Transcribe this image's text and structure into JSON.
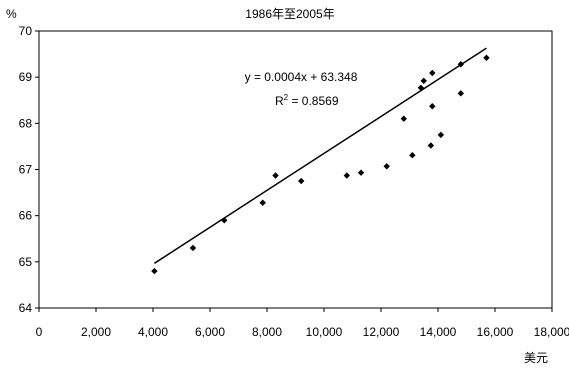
{
  "chart_data": {
    "type": "scatter",
    "title": "1986年至2005年",
    "ylabel": "%",
    "xlabel": "美元",
    "xlim": [
      0,
      18000
    ],
    "ylim": [
      64,
      70
    ],
    "xticks": [
      0,
      2000,
      4000,
      6000,
      8000,
      10000,
      12000,
      14000,
      16000,
      18000
    ],
    "xtick_labels": [
      "0",
      "2,000",
      "4,000",
      "6,000",
      "8,000",
      "10,000",
      "12,000",
      "14,000",
      "16,000",
      "18,000"
    ],
    "yticks": [
      64,
      65,
      66,
      67,
      68,
      69,
      70
    ],
    "ytick_labels": [
      "64",
      "65",
      "66",
      "67",
      "68",
      "69",
      "70"
    ],
    "grid": false,
    "legend": "none",
    "marker_color": "#000000",
    "points": [
      {
        "x": 4050,
        "y": 64.8
      },
      {
        "x": 5400,
        "y": 65.3
      },
      {
        "x": 6500,
        "y": 65.9
      },
      {
        "x": 7850,
        "y": 66.28
      },
      {
        "x": 8300,
        "y": 66.87
      },
      {
        "x": 9200,
        "y": 66.75
      },
      {
        "x": 10800,
        "y": 66.87
      },
      {
        "x": 11300,
        "y": 66.93
      },
      {
        "x": 12200,
        "y": 67.07
      },
      {
        "x": 12800,
        "y": 68.1
      },
      {
        "x": 13100,
        "y": 67.31
      },
      {
        "x": 13400,
        "y": 68.77
      },
      {
        "x": 13500,
        "y": 68.92
      },
      {
        "x": 13750,
        "y": 67.52
      },
      {
        "x": 13800,
        "y": 68.37
      },
      {
        "x": 13800,
        "y": 69.09
      },
      {
        "x": 14100,
        "y": 67.75
      },
      {
        "x": 14800,
        "y": 68.65
      },
      {
        "x": 14800,
        "y": 69.28
      },
      {
        "x": 15700,
        "y": 69.42
      }
    ],
    "trendline": {
      "slope": 0.0004,
      "intercept": 63.348,
      "x_range": [
        4050,
        15700
      ],
      "color": "#000000",
      "equation": "y = 0.0004x + 63.348",
      "r2_prefix": "R",
      "r2_exponent": "2",
      "r2_value": " = 0.8569"
    }
  }
}
